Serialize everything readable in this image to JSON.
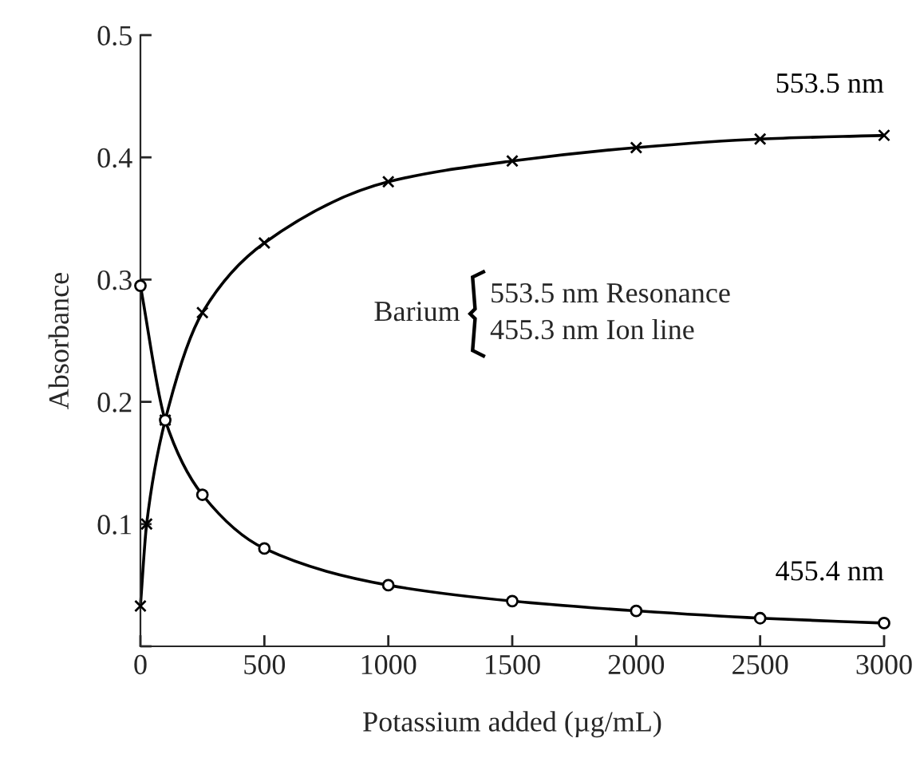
{
  "chart_data": {
    "type": "line",
    "xlabel": "Potassium added (µg/mL)",
    "ylabel": "Absorbance",
    "xlim": [
      0,
      3000
    ],
    "xticks": [
      0,
      500,
      1000,
      1500,
      2000,
      2500,
      3000
    ],
    "ylim": [
      0,
      0.5
    ],
    "yticks": [
      {
        "value": 0,
        "label": null
      },
      0.1,
      0.2,
      0.3,
      0.4,
      0.5
    ],
    "grid": false,
    "legend": false,
    "series": [
      {
        "name": "553.5 nm",
        "color": "#000000",
        "marker": "cross",
        "x": [
          0,
          25,
          100,
          250,
          500,
          1000,
          1500,
          2000,
          2500,
          3000
        ],
        "values": [
          0.033,
          0.1,
          0.185,
          0.273,
          0.33,
          0.38,
          0.397,
          0.408,
          0.415,
          0.418
        ]
      },
      {
        "name": "455.4 nm",
        "color": "#000000",
        "marker": "circle",
        "x": [
          0,
          100,
          250,
          500,
          1000,
          1500,
          2000,
          2500,
          3000
        ],
        "values": [
          0.295,
          0.185,
          0.124,
          0.08,
          0.05,
          0.037,
          0.029,
          0.023,
          0.019
        ]
      }
    ],
    "annotations": [
      "Barium",
      "553.5 nm Resonance",
      "455.3 nm Ion line"
    ]
  }
}
